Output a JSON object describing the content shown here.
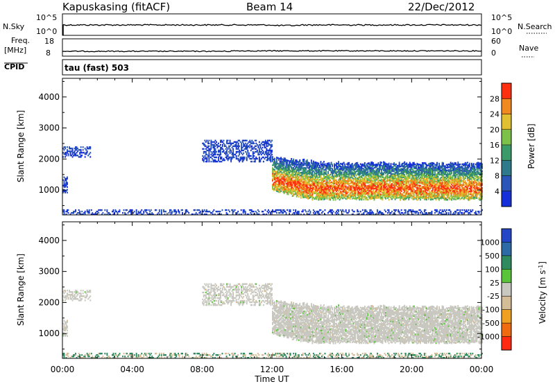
{
  "header": {
    "station": "Kapuskasing (fitACF)",
    "beam": "Beam 14",
    "date": "22/Dec/2012"
  },
  "params": {
    "nsky_label": "N.Sky",
    "nsky_ticks": [
      "10^5",
      "10^0"
    ],
    "nsearch_label": "N.Search",
    "nsearch_ticks": [
      "10^5",
      "10^0"
    ],
    "freq_label_1": "Freq.",
    "freq_label_2": "[MHz]",
    "freq_ticks": [
      "18",
      "8"
    ],
    "nave_label": "Nave",
    "nave_ticks": [
      "60",
      "0"
    ],
    "cpid_label": "CPID",
    "cpid_value": "tau (fast) 503"
  },
  "colors": {
    "power": [
      "#1530d8",
      "#2b55b8",
      "#2e7a8c",
      "#3a9a6a",
      "#7cc24a",
      "#e0c030",
      "#f08a20",
      "#ff3010"
    ],
    "velocity": [
      "#2447c8",
      "#2e6aa6",
      "#2f8a60",
      "#59c43a",
      "#c8c8c0",
      "#d4bd96",
      "#f0a020",
      "#f06a10",
      "#ff2a10"
    ]
  },
  "chart_data": [
    {
      "type": "heatmap",
      "parameter": "Power",
      "ylabel": "Slant Range [km]",
      "y_ticks": [
        1000,
        2000,
        3000,
        4000
      ],
      "ylim": [
        200,
        4600
      ],
      "xlim": [
        0,
        24
      ],
      "colorbar_label": "Power [dB]",
      "colorbar_ticks": [
        4,
        8,
        12,
        16,
        20,
        24,
        28
      ],
      "colorbar_range": [
        0,
        32
      ],
      "regions": [
        {
          "t_start": 0.0,
          "t_end": 1.6,
          "range_km": [
            2050,
            2400
          ],
          "level": "low"
        },
        {
          "t_start": 0.0,
          "t_end": 0.3,
          "range_km": [
            900,
            1400
          ],
          "level": "low"
        },
        {
          "t_start": 8.0,
          "t_end": 12.0,
          "range_km": [
            1900,
            2600
          ],
          "level": "low"
        },
        {
          "t_start": 12.0,
          "t_end": 24.0,
          "range_km": [
            700,
            1900
          ],
          "level": "high"
        },
        {
          "t_start": 0.0,
          "t_end": 24.0,
          "range_km": [
            200,
            350
          ],
          "level": "low"
        }
      ]
    },
    {
      "type": "heatmap",
      "parameter": "Velocity",
      "ylabel": "Slant Range [km]",
      "y_ticks": [
        1000,
        2000,
        3000,
        4000
      ],
      "ylim": [
        200,
        4600
      ],
      "xlim": [
        0,
        24
      ],
      "xlabel": "Time UT",
      "x_ticks": [
        "00:00",
        "04:00",
        "08:00",
        "12:00",
        "16:00",
        "20:00",
        "00:00"
      ],
      "colorbar_label": "Velocity [m s^-1]",
      "colorbar_ticks": [
        1000,
        500,
        100,
        25,
        -25,
        -100,
        -500,
        -1000
      ],
      "regions": [
        {
          "t_start": 0.0,
          "t_end": 1.6,
          "range_km": [
            2050,
            2400
          ],
          "velocity_ms": 0
        },
        {
          "t_start": 8.0,
          "t_end": 12.0,
          "range_km": [
            1900,
            2600
          ],
          "velocity_ms": 0
        },
        {
          "t_start": 12.0,
          "t_end": 24.0,
          "range_km": [
            700,
            1900
          ],
          "velocity_ms": 0
        },
        {
          "t_start": 0.0,
          "t_end": 24.0,
          "range_km": [
            200,
            350
          ],
          "velocity_ms": -100
        }
      ]
    }
  ],
  "axes": {
    "xlabel": "Time UT",
    "x_ticks": [
      "00:00",
      "04:00",
      "08:00",
      "12:00",
      "16:00",
      "20:00",
      "00:00"
    ]
  }
}
